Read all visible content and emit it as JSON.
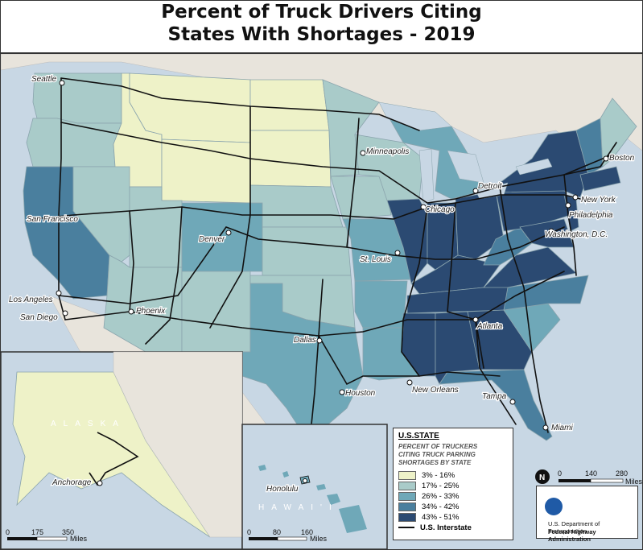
{
  "title": {
    "line1": "Percent of Truck Drivers Citing",
    "line2": "States With Shortages - 2019"
  },
  "colors": {
    "c1": "#eef2c8",
    "c2": "#a9cbc9",
    "c3": "#6fa8b8",
    "c4": "#4a7f9e",
    "c5": "#2b4a72",
    "water": "#c8d7e4",
    "land_other": "#e8e4dc"
  },
  "cities": [
    {
      "name": "Seattle"
    },
    {
      "name": "San Francisco"
    },
    {
      "name": "Los Angeles"
    },
    {
      "name": "San Diego"
    },
    {
      "name": "Phoenix"
    },
    {
      "name": "Denver"
    },
    {
      "name": "Minneapolis"
    },
    {
      "name": "Chicago"
    },
    {
      "name": "Detroit"
    },
    {
      "name": "St. Louis"
    },
    {
      "name": "Dallas"
    },
    {
      "name": "Houston"
    },
    {
      "name": "New Orleans"
    },
    {
      "name": "Atlanta"
    },
    {
      "name": "Tampa"
    },
    {
      "name": "Miami"
    },
    {
      "name": "Washington, D.C."
    },
    {
      "name": "Philadelphia"
    },
    {
      "name": "New York"
    },
    {
      "name": "Boston"
    },
    {
      "name": "Anchorage"
    },
    {
      "name": "Honolulu"
    }
  ],
  "insets": {
    "alaska_label": "ALASKA",
    "hawaii_label": "HAWAI'I",
    "alaska_scale": [
      "0",
      "175",
      "350",
      "Miles"
    ],
    "hawaii_scale": [
      "0",
      "80",
      "160",
      "Miles"
    ],
    "main_scale": [
      "0",
      "140",
      "280",
      "Miles"
    ],
    "north_arrow": "N"
  },
  "legend": {
    "title": "U.S.STATE",
    "subtitle1": "PERCENT OF TRUCKERS",
    "subtitle2": "CITING TRUCK PARKING",
    "subtitle3": "SHORTAGES BY STATE",
    "classes": [
      {
        "label": "3% - 16%",
        "color": "#eef2c8"
      },
      {
        "label": "17% - 25%",
        "color": "#a9cbc9"
      },
      {
        "label": "26% - 33%",
        "color": "#6fa8b8"
      },
      {
        "label": "34% - 42%",
        "color": "#4a7f9e"
      },
      {
        "label": "43% - 51%",
        "color": "#2b4a72"
      }
    ],
    "interstate_label": "U.S. Interstate"
  },
  "agency": {
    "line1": "U.S. Department of Transportation",
    "line2": "Federal Highway Administration"
  }
}
